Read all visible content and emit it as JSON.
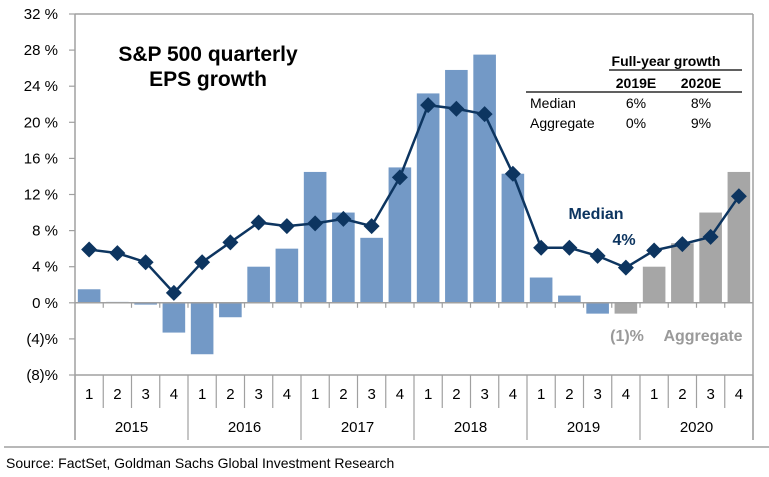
{
  "chart_data": {
    "type": "bar",
    "title": "S&P 500 quarterly EPS growth",
    "title_lines": [
      "S&P 500 quarterly",
      "EPS growth"
    ],
    "xlabel": "",
    "ylabel": "",
    "ylim": [
      -8,
      32
    ],
    "yticks": [
      32,
      28,
      24,
      20,
      16,
      12,
      8,
      4,
      0,
      -4,
      -8
    ],
    "ytick_labels": [
      "32 %",
      "28 %",
      "24 %",
      "20 %",
      "16 %",
      "12 %",
      "8 %",
      "4 %",
      "0 %",
      "(4)%",
      "(8)%"
    ],
    "grid": false,
    "years": [
      "2015",
      "2016",
      "2017",
      "2018",
      "2019",
      "2020"
    ],
    "quarters": [
      "1",
      "2",
      "3",
      "4"
    ],
    "categories": [
      "2015 Q1",
      "2015 Q2",
      "2015 Q3",
      "2015 Q4",
      "2016 Q1",
      "2016 Q2",
      "2016 Q3",
      "2016 Q4",
      "2017 Q1",
      "2017 Q2",
      "2017 Q3",
      "2017 Q4",
      "2018 Q1",
      "2018 Q2",
      "2018 Q3",
      "2018 Q4",
      "2019 Q1",
      "2019 Q2",
      "2019 Q3",
      "2019 Q4",
      "2020 Q1",
      "2020 Q2",
      "2020 Q3",
      "2020 Q4"
    ],
    "series": [
      {
        "name": "Aggregate",
        "kind": "bar",
        "values": [
          1.5,
          0.1,
          -0.2,
          -3.3,
          -5.7,
          -1.6,
          4.0,
          6.0,
          14.5,
          10.0,
          7.2,
          15.0,
          23.2,
          25.8,
          27.5,
          14.3,
          2.8,
          0.8,
          -1.2,
          -1.2,
          4.0,
          6.6,
          10.0,
          14.5
        ],
        "estimate": [
          false,
          false,
          false,
          false,
          false,
          false,
          false,
          false,
          false,
          false,
          false,
          false,
          false,
          false,
          false,
          false,
          false,
          false,
          false,
          true,
          true,
          true,
          true,
          true
        ],
        "color_actual": "#7399c6",
        "color_estimate": "#a6a6a6"
      },
      {
        "name": "Median",
        "kind": "line",
        "marker": "diamond",
        "values": [
          5.9,
          5.5,
          4.5,
          1.1,
          4.5,
          6.7,
          8.9,
          8.5,
          8.8,
          9.3,
          8.5,
          13.9,
          21.9,
          21.5,
          20.9,
          14.3,
          6.1,
          6.1,
          5.2,
          3.9,
          5.8,
          6.5,
          7.3,
          11.8
        ],
        "color": "#0d3560"
      }
    ],
    "annotations": [
      {
        "text": "Median",
        "series": "Median"
      },
      {
        "text": "4%",
        "series": "Median",
        "category": "2019 Q4"
      },
      {
        "text": "(1)%",
        "series": "Aggregate",
        "category": "2019 Q4"
      },
      {
        "text": "Aggregate",
        "series": "Aggregate"
      }
    ],
    "inset_table": {
      "title": "Full-year growth",
      "columns": [
        "2019E",
        "2020E"
      ],
      "rows": [
        {
          "label": "Median",
          "values": [
            "6%",
            "8%"
          ]
        },
        {
          "label": "Aggregate",
          "values": [
            "0%",
            "9%"
          ]
        }
      ]
    }
  },
  "source": "Source: FactSet, Goldman Sachs Global Investment Research"
}
